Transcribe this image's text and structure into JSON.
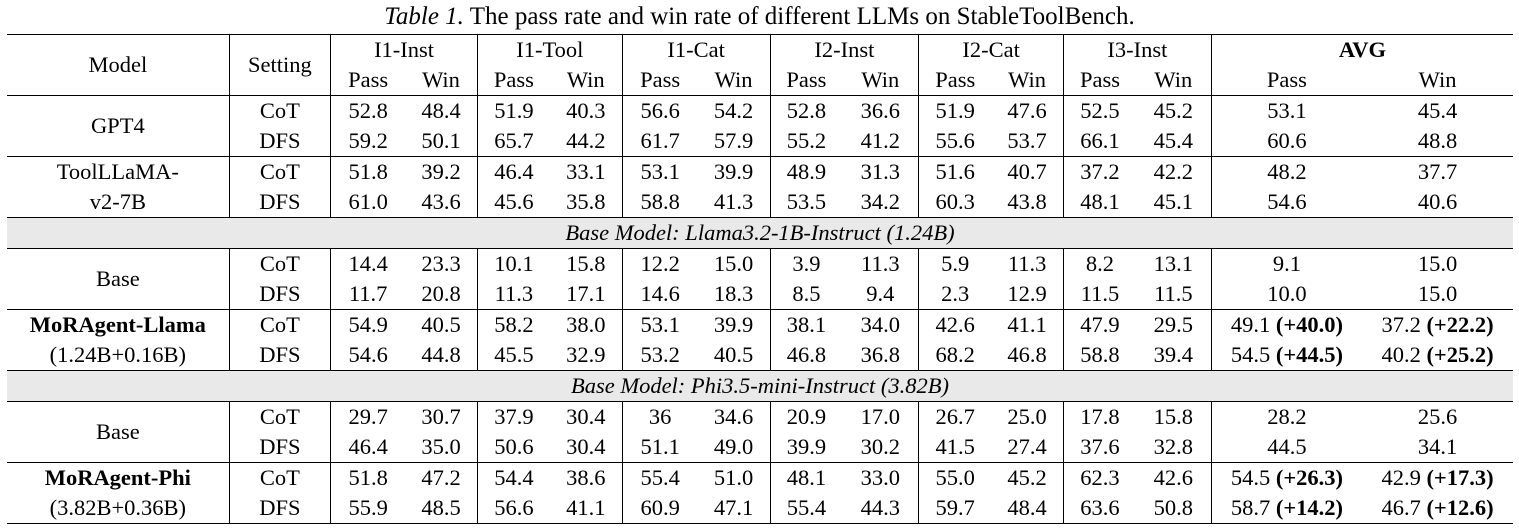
{
  "caption": {
    "label": "Table 1.",
    "text": "The pass rate and win rate of different LLMs on StableToolBench."
  },
  "header": {
    "model": "Model",
    "setting": "Setting",
    "groups": [
      "I1-Inst",
      "I1-Tool",
      "I1-Cat",
      "I2-Inst",
      "I2-Cat",
      "I3-Inst",
      "AVG"
    ],
    "pass": "Pass",
    "win": "Win"
  },
  "gpt4": {
    "name": "GPT4",
    "rows": [
      {
        "setting": "CoT",
        "vals": [
          "52.8",
          "48.4",
          "51.9",
          "40.3",
          "56.6",
          "54.2",
          "52.8",
          "36.6",
          "51.9",
          "47.6",
          "52.5",
          "45.2"
        ],
        "avg_pass": "53.1",
        "avg_win": "45.4"
      },
      {
        "setting": "DFS",
        "vals": [
          "59.2",
          "50.1",
          "65.7",
          "44.2",
          "61.7",
          "57.9",
          "55.2",
          "41.2",
          "55.6",
          "53.7",
          "66.1",
          "45.4"
        ],
        "avg_pass": "60.6",
        "avg_win": "48.8"
      }
    ]
  },
  "toolllama": {
    "name_line1": "ToolLLaMA-",
    "name_line2": "v2-7B",
    "rows": [
      {
        "setting": "CoT",
        "vals": [
          "51.8",
          "39.2",
          "46.4",
          "33.1",
          "53.1",
          "39.9",
          "48.9",
          "31.3",
          "51.6",
          "40.7",
          "37.2",
          "42.2"
        ],
        "avg_pass": "48.2",
        "avg_win": "37.7"
      },
      {
        "setting": "DFS",
        "vals": [
          "61.0",
          "43.6",
          "45.6",
          "35.8",
          "58.8",
          "41.3",
          "53.5",
          "34.2",
          "60.3",
          "43.8",
          "48.1",
          "45.1"
        ],
        "avg_pass": "54.6",
        "avg_win": "40.6"
      }
    ]
  },
  "section_llama": "Base Model: Llama3.2-1B-Instruct (1.24B)",
  "llama_base": {
    "name": "Base",
    "rows": [
      {
        "setting": "CoT",
        "vals": [
          "14.4",
          "23.3",
          "10.1",
          "15.8",
          "12.2",
          "15.0",
          "3.9",
          "11.3",
          "5.9",
          "11.3",
          "8.2",
          "13.1"
        ],
        "avg_pass": "9.1",
        "avg_win": "15.0"
      },
      {
        "setting": "DFS",
        "vals": [
          "11.7",
          "20.8",
          "11.3",
          "17.1",
          "14.6",
          "18.3",
          "8.5",
          "9.4",
          "2.3",
          "12.9",
          "11.5",
          "11.5"
        ],
        "avg_pass": "10.0",
        "avg_win": "15.0"
      }
    ]
  },
  "moragent_llama": {
    "name_line1": "MoRAgent-Llama",
    "name_line2": "(1.24B+0.16B)",
    "rows": [
      {
        "setting": "CoT",
        "vals": [
          "54.9",
          "40.5",
          "58.2",
          "38.0",
          "53.1",
          "39.9",
          "38.1",
          "34.0",
          "42.6",
          "41.1",
          "47.9",
          "29.5"
        ],
        "avg_pass": "49.1",
        "avg_pass_delta": "(+40.0)",
        "avg_win": "37.2",
        "avg_win_delta": "(+22.2)"
      },
      {
        "setting": "DFS",
        "vals": [
          "54.6",
          "44.8",
          "45.5",
          "32.9",
          "53.2",
          "40.5",
          "46.8",
          "36.8",
          "68.2",
          "46.8",
          "58.8",
          "39.4"
        ],
        "avg_pass": "54.5",
        "avg_pass_delta": "(+44.5)",
        "avg_win": "40.2",
        "avg_win_delta": "(+25.2)"
      }
    ]
  },
  "section_phi": "Base Model: Phi3.5-mini-Instruct (3.82B)",
  "phi_base": {
    "name": "Base",
    "rows": [
      {
        "setting": "CoT",
        "vals": [
          "29.7",
          "30.7",
          "37.9",
          "30.4",
          "36",
          "34.6",
          "20.9",
          "17.0",
          "26.7",
          "25.0",
          "17.8",
          "15.8"
        ],
        "avg_pass": "28.2",
        "avg_win": "25.6"
      },
      {
        "setting": "DFS",
        "vals": [
          "46.4",
          "35.0",
          "50.6",
          "30.4",
          "51.1",
          "49.0",
          "39.9",
          "30.2",
          "41.5",
          "27.4",
          "37.6",
          "32.8"
        ],
        "avg_pass": "44.5",
        "avg_win": "34.1"
      }
    ]
  },
  "moragent_phi": {
    "name_line1": "MoRAgent-Phi",
    "name_line2": "(3.82B+0.36B)",
    "rows": [
      {
        "setting": "CoT",
        "vals": [
          "51.8",
          "47.2",
          "54.4",
          "38.6",
          "55.4",
          "51.0",
          "48.1",
          "33.0",
          "55.0",
          "45.2",
          "62.3",
          "42.6"
        ],
        "avg_pass": "54.5",
        "avg_pass_delta": "(+26.3)",
        "avg_win": "42.9",
        "avg_win_delta": "(+17.3)"
      },
      {
        "setting": "DFS",
        "vals": [
          "55.9",
          "48.5",
          "56.6",
          "41.1",
          "60.9",
          "47.1",
          "55.4",
          "44.3",
          "59.7",
          "48.4",
          "63.6",
          "50.8"
        ],
        "avg_pass": "58.7",
        "avg_pass_delta": "(+14.2)",
        "avg_win": "46.7",
        "avg_win_delta": "(+12.6)"
      }
    ]
  }
}
